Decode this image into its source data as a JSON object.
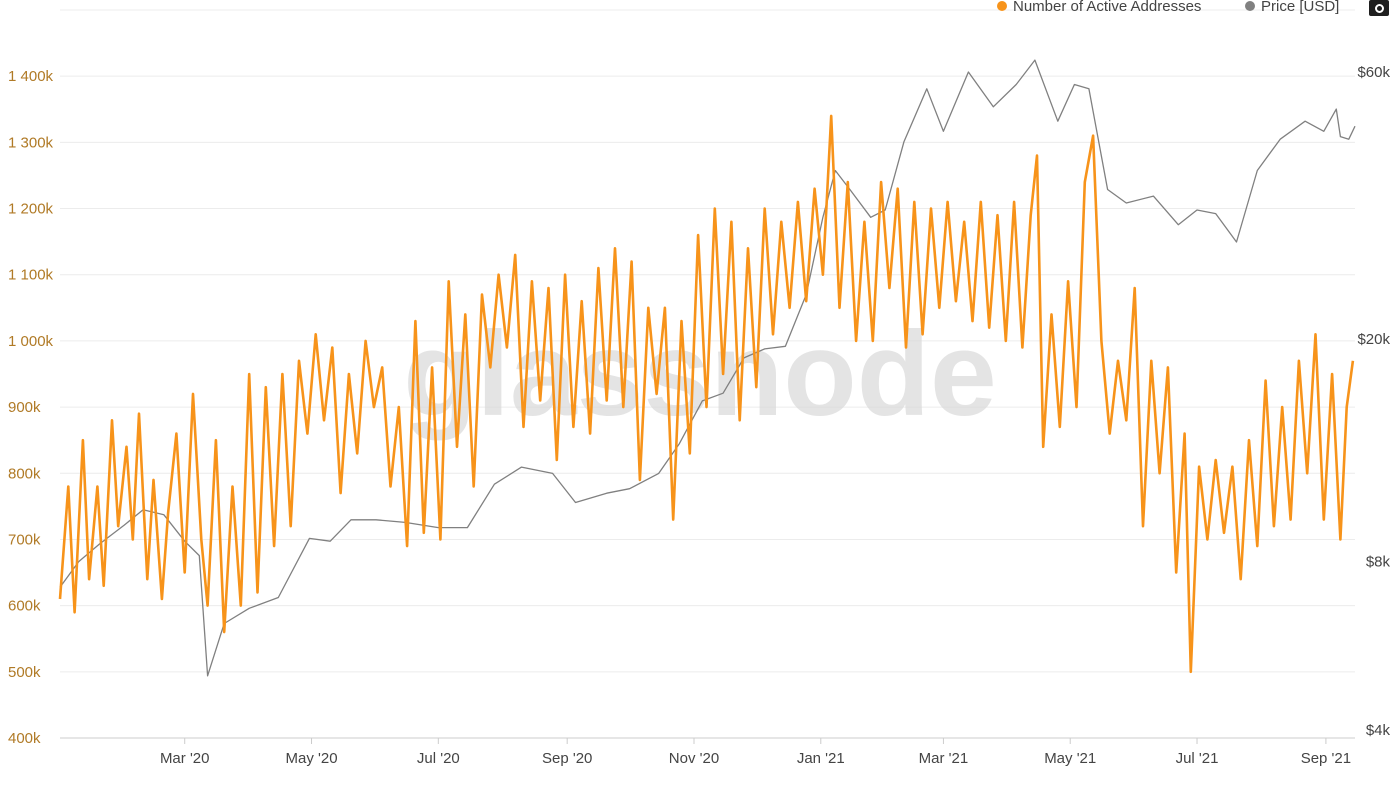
{
  "watermark": "glassnode",
  "chart_data": {
    "type": "line",
    "title": "",
    "legend": {
      "placement": "top-right",
      "entries": [
        {
          "name": "Number of Active Addresses",
          "color": "#f7931a"
        },
        {
          "name": "Price [USD]",
          "color": "#808080"
        }
      ]
    },
    "x_axis": {
      "type": "date",
      "range": [
        "2020-01-01",
        "2021-09-15"
      ],
      "ticks": [
        {
          "date": "2020-03-01",
          "label": "Mar '20"
        },
        {
          "date": "2020-05-01",
          "label": "May '20"
        },
        {
          "date": "2020-07-01",
          "label": "Jul '20"
        },
        {
          "date": "2020-09-01",
          "label": "Sep '20"
        },
        {
          "date": "2020-11-01",
          "label": "Nov '20"
        },
        {
          "date": "2021-01-01",
          "label": "Jan '21"
        },
        {
          "date": "2021-03-01",
          "label": "Mar '21"
        },
        {
          "date": "2021-05-01",
          "label": "May '21"
        },
        {
          "date": "2021-07-01",
          "label": "Jul '21"
        },
        {
          "date": "2021-09-01",
          "label": "Sep '21"
        }
      ]
    },
    "y_left": {
      "scale": "linear",
      "range": [
        400000,
        1500000
      ],
      "ticks": [
        {
          "value": 400000,
          "label": "400k"
        },
        {
          "value": 500000,
          "label": "500k"
        },
        {
          "value": 600000,
          "label": "600k"
        },
        {
          "value": 700000,
          "label": "700k"
        },
        {
          "value": 800000,
          "label": "800k"
        },
        {
          "value": 900000,
          "label": "900k"
        },
        {
          "value": 1000000,
          "label": "1 000k"
        },
        {
          "value": 1100000,
          "label": "1 100k"
        },
        {
          "value": 1200000,
          "label": "1 200k"
        },
        {
          "value": 1300000,
          "label": "1 300k"
        },
        {
          "value": 1400000,
          "label": "1 400k"
        }
      ],
      "grid": true
    },
    "y_right": {
      "scale": "log",
      "range": [
        4000,
        60000
      ],
      "ticks": [
        {
          "value": 4000,
          "label": "$4k"
        },
        {
          "value": 8000,
          "label": "$8k"
        },
        {
          "value": 20000,
          "label": "$20k"
        },
        {
          "value": 60000,
          "label": "$60k"
        }
      ]
    },
    "series": [
      {
        "name": "Number of Active Addresses",
        "axis": "left",
        "color": "#f7931a",
        "points": [
          [
            "2020-01-01",
            610000
          ],
          [
            "2020-01-05",
            780000
          ],
          [
            "2020-01-08",
            590000
          ],
          [
            "2020-01-12",
            850000
          ],
          [
            "2020-01-15",
            640000
          ],
          [
            "2020-01-19",
            780000
          ],
          [
            "2020-01-22",
            630000
          ],
          [
            "2020-01-26",
            880000
          ],
          [
            "2020-01-29",
            720000
          ],
          [
            "2020-02-02",
            840000
          ],
          [
            "2020-02-05",
            700000
          ],
          [
            "2020-02-08",
            890000
          ],
          [
            "2020-02-12",
            640000
          ],
          [
            "2020-02-15",
            790000
          ],
          [
            "2020-02-19",
            610000
          ],
          [
            "2020-02-22",
            740000
          ],
          [
            "2020-02-26",
            860000
          ],
          [
            "2020-03-01",
            650000
          ],
          [
            "2020-03-05",
            920000
          ],
          [
            "2020-03-09",
            700000
          ],
          [
            "2020-03-12",
            600000
          ],
          [
            "2020-03-16",
            850000
          ],
          [
            "2020-03-20",
            560000
          ],
          [
            "2020-03-24",
            780000
          ],
          [
            "2020-03-28",
            600000
          ],
          [
            "2020-04-01",
            950000
          ],
          [
            "2020-04-05",
            620000
          ],
          [
            "2020-04-09",
            930000
          ],
          [
            "2020-04-13",
            690000
          ],
          [
            "2020-04-17",
            950000
          ],
          [
            "2020-04-21",
            720000
          ],
          [
            "2020-04-25",
            970000
          ],
          [
            "2020-04-29",
            860000
          ],
          [
            "2020-05-03",
            1010000
          ],
          [
            "2020-05-07",
            880000
          ],
          [
            "2020-05-11",
            990000
          ],
          [
            "2020-05-15",
            770000
          ],
          [
            "2020-05-19",
            950000
          ],
          [
            "2020-05-23",
            830000
          ],
          [
            "2020-05-27",
            1000000
          ],
          [
            "2020-05-31",
            900000
          ],
          [
            "2020-06-04",
            960000
          ],
          [
            "2020-06-08",
            780000
          ],
          [
            "2020-06-12",
            900000
          ],
          [
            "2020-06-16",
            690000
          ],
          [
            "2020-06-20",
            1030000
          ],
          [
            "2020-06-24",
            710000
          ],
          [
            "2020-06-28",
            960000
          ],
          [
            "2020-07-02",
            700000
          ],
          [
            "2020-07-06",
            1090000
          ],
          [
            "2020-07-10",
            840000
          ],
          [
            "2020-07-14",
            1040000
          ],
          [
            "2020-07-18",
            780000
          ],
          [
            "2020-07-22",
            1070000
          ],
          [
            "2020-07-26",
            960000
          ],
          [
            "2020-07-30",
            1100000
          ],
          [
            "2020-08-03",
            990000
          ],
          [
            "2020-08-07",
            1130000
          ],
          [
            "2020-08-11",
            870000
          ],
          [
            "2020-08-15",
            1090000
          ],
          [
            "2020-08-19",
            910000
          ],
          [
            "2020-08-23",
            1080000
          ],
          [
            "2020-08-27",
            820000
          ],
          [
            "2020-08-31",
            1100000
          ],
          [
            "2020-09-04",
            870000
          ],
          [
            "2020-09-08",
            1060000
          ],
          [
            "2020-09-12",
            860000
          ],
          [
            "2020-09-16",
            1110000
          ],
          [
            "2020-09-20",
            910000
          ],
          [
            "2020-09-24",
            1140000
          ],
          [
            "2020-09-28",
            900000
          ],
          [
            "2020-10-02",
            1120000
          ],
          [
            "2020-10-06",
            790000
          ],
          [
            "2020-10-10",
            1050000
          ],
          [
            "2020-10-14",
            920000
          ],
          [
            "2020-10-18",
            1050000
          ],
          [
            "2020-10-22",
            730000
          ],
          [
            "2020-10-26",
            1030000
          ],
          [
            "2020-10-30",
            830000
          ],
          [
            "2020-11-03",
            1160000
          ],
          [
            "2020-11-07",
            900000
          ],
          [
            "2020-11-11",
            1200000
          ],
          [
            "2020-11-15",
            950000
          ],
          [
            "2020-11-19",
            1180000
          ],
          [
            "2020-11-23",
            880000
          ],
          [
            "2020-11-27",
            1140000
          ],
          [
            "2020-12-01",
            930000
          ],
          [
            "2020-12-05",
            1200000
          ],
          [
            "2020-12-09",
            1010000
          ],
          [
            "2020-12-13",
            1180000
          ],
          [
            "2020-12-17",
            1050000
          ],
          [
            "2020-12-21",
            1210000
          ],
          [
            "2020-12-25",
            1060000
          ],
          [
            "2020-12-29",
            1230000
          ],
          [
            "2021-01-02",
            1100000
          ],
          [
            "2021-01-06",
            1340000
          ],
          [
            "2021-01-10",
            1050000
          ],
          [
            "2021-01-14",
            1240000
          ],
          [
            "2021-01-18",
            1000000
          ],
          [
            "2021-01-22",
            1180000
          ],
          [
            "2021-01-26",
            1000000
          ],
          [
            "2021-01-30",
            1240000
          ],
          [
            "2021-02-03",
            1080000
          ],
          [
            "2021-02-07",
            1230000
          ],
          [
            "2021-02-11",
            990000
          ],
          [
            "2021-02-15",
            1210000
          ],
          [
            "2021-02-19",
            1010000
          ],
          [
            "2021-02-23",
            1200000
          ],
          [
            "2021-02-27",
            1050000
          ],
          [
            "2021-03-03",
            1210000
          ],
          [
            "2021-03-07",
            1060000
          ],
          [
            "2021-03-11",
            1180000
          ],
          [
            "2021-03-15",
            1030000
          ],
          [
            "2021-03-19",
            1210000
          ],
          [
            "2021-03-23",
            1020000
          ],
          [
            "2021-03-27",
            1190000
          ],
          [
            "2021-03-31",
            1000000
          ],
          [
            "2021-04-04",
            1210000
          ],
          [
            "2021-04-08",
            990000
          ],
          [
            "2021-04-12",
            1190000
          ],
          [
            "2021-04-15",
            1280000
          ],
          [
            "2021-04-18",
            840000
          ],
          [
            "2021-04-22",
            1040000
          ],
          [
            "2021-04-26",
            870000
          ],
          [
            "2021-04-30",
            1090000
          ],
          [
            "2021-05-04",
            900000
          ],
          [
            "2021-05-08",
            1240000
          ],
          [
            "2021-05-12",
            1310000
          ],
          [
            "2021-05-16",
            1000000
          ],
          [
            "2021-05-20",
            860000
          ],
          [
            "2021-05-24",
            970000
          ],
          [
            "2021-05-28",
            880000
          ],
          [
            "2021-06-01",
            1080000
          ],
          [
            "2021-06-05",
            720000
          ],
          [
            "2021-06-09",
            970000
          ],
          [
            "2021-06-13",
            800000
          ],
          [
            "2021-06-17",
            960000
          ],
          [
            "2021-06-21",
            650000
          ],
          [
            "2021-06-25",
            860000
          ],
          [
            "2021-06-28",
            500000
          ],
          [
            "2021-07-02",
            810000
          ],
          [
            "2021-07-06",
            700000
          ],
          [
            "2021-07-10",
            820000
          ],
          [
            "2021-07-14",
            710000
          ],
          [
            "2021-07-18",
            810000
          ],
          [
            "2021-07-22",
            640000
          ],
          [
            "2021-07-26",
            850000
          ],
          [
            "2021-07-30",
            690000
          ],
          [
            "2021-08-03",
            940000
          ],
          [
            "2021-08-07",
            720000
          ],
          [
            "2021-08-11",
            900000
          ],
          [
            "2021-08-15",
            730000
          ],
          [
            "2021-08-19",
            970000
          ],
          [
            "2021-08-23",
            800000
          ],
          [
            "2021-08-27",
            1010000
          ],
          [
            "2021-08-31",
            730000
          ],
          [
            "2021-09-04",
            950000
          ],
          [
            "2021-09-08",
            700000
          ],
          [
            "2021-09-11",
            900000
          ],
          [
            "2021-09-14",
            970000
          ]
        ]
      },
      {
        "name": "Price [USD]",
        "axis": "right",
        "color": "#808080",
        "points": [
          [
            "2020-01-01",
            7200
          ],
          [
            "2020-01-10",
            8000
          ],
          [
            "2020-01-20",
            8600
          ],
          [
            "2020-02-01",
            9300
          ],
          [
            "2020-02-10",
            9900
          ],
          [
            "2020-02-20",
            9700
          ],
          [
            "2020-03-01",
            8700
          ],
          [
            "2020-03-08",
            8200
          ],
          [
            "2020-03-12",
            5000
          ],
          [
            "2020-03-20",
            6200
          ],
          [
            "2020-04-01",
            6600
          ],
          [
            "2020-04-15",
            6900
          ],
          [
            "2020-04-30",
            8800
          ],
          [
            "2020-05-10",
            8700
          ],
          [
            "2020-05-20",
            9500
          ],
          [
            "2020-06-01",
            9500
          ],
          [
            "2020-06-15",
            9400
          ],
          [
            "2020-07-01",
            9200
          ],
          [
            "2020-07-15",
            9200
          ],
          [
            "2020-07-28",
            11000
          ],
          [
            "2020-08-10",
            11800
          ],
          [
            "2020-08-25",
            11500
          ],
          [
            "2020-09-05",
            10200
          ],
          [
            "2020-09-20",
            10600
          ],
          [
            "2020-10-01",
            10800
          ],
          [
            "2020-10-15",
            11500
          ],
          [
            "2020-10-25",
            13000
          ],
          [
            "2020-11-05",
            15500
          ],
          [
            "2020-11-15",
            16000
          ],
          [
            "2020-11-25",
            18500
          ],
          [
            "2020-12-05",
            19200
          ],
          [
            "2020-12-15",
            19400
          ],
          [
            "2020-12-25",
            24000
          ],
          [
            "2021-01-02",
            33000
          ],
          [
            "2021-01-08",
            40000
          ],
          [
            "2021-01-15",
            37000
          ],
          [
            "2021-01-25",
            33000
          ],
          [
            "2021-02-01",
            34000
          ],
          [
            "2021-02-10",
            45000
          ],
          [
            "2021-02-21",
            56000
          ],
          [
            "2021-03-01",
            47000
          ],
          [
            "2021-03-13",
            60000
          ],
          [
            "2021-03-25",
            52000
          ],
          [
            "2021-04-05",
            57000
          ],
          [
            "2021-04-14",
            63000
          ],
          [
            "2021-04-25",
            49000
          ],
          [
            "2021-05-03",
            57000
          ],
          [
            "2021-05-10",
            56000
          ],
          [
            "2021-05-19",
            37000
          ],
          [
            "2021-05-28",
            35000
          ],
          [
            "2021-06-10",
            36000
          ],
          [
            "2021-06-22",
            32000
          ],
          [
            "2021-07-01",
            34000
          ],
          [
            "2021-07-10",
            33500
          ],
          [
            "2021-07-20",
            29800
          ],
          [
            "2021-07-30",
            40000
          ],
          [
            "2021-08-10",
            45500
          ],
          [
            "2021-08-22",
            49000
          ],
          [
            "2021-08-31",
            47000
          ],
          [
            "2021-09-06",
            51500
          ],
          [
            "2021-09-08",
            46000
          ],
          [
            "2021-09-12",
            45500
          ],
          [
            "2021-09-15",
            48000
          ]
        ]
      }
    ]
  }
}
